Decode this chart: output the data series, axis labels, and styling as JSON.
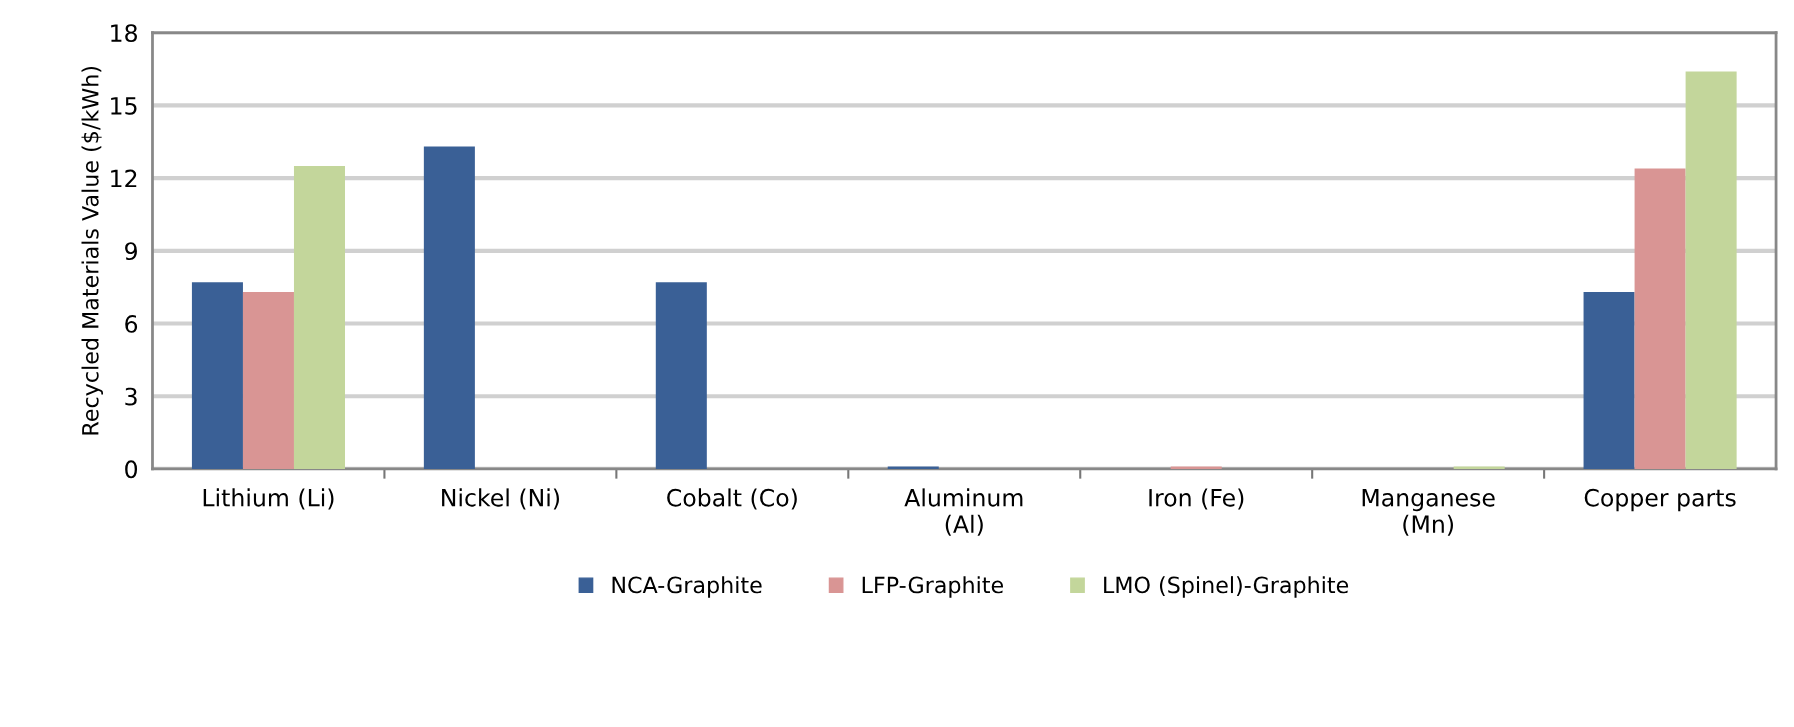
{
  "chart_data": {
    "type": "bar",
    "ylabel": "Recycled Materials Value ($/kWh)",
    "categories": [
      "Lithium (Li)",
      "Nickel (Ni)",
      "Cobalt (Co)",
      "Aluminum\n(Al)",
      "Iron (Fe)",
      "Manganese\n(Mn)",
      "Copper parts"
    ],
    "series": [
      {
        "name": "NCA-Graphite",
        "color": "#3a6096",
        "values": [
          7.7,
          13.3,
          7.7,
          0.1,
          0,
          0,
          7.3
        ]
      },
      {
        "name": "LFP-Graphite",
        "color": "#d99594",
        "values": [
          7.3,
          0,
          0,
          0,
          0.1,
          0,
          12.4
        ]
      },
      {
        "name": "LMO (Spinel)-Graphite",
        "color": "#c3d69b",
        "values": [
          12.5,
          0,
          0,
          0,
          0,
          0.1,
          16.4
        ]
      }
    ],
    "ylim": [
      0,
      18
    ],
    "yticks": [
      0,
      3,
      6,
      9,
      12,
      15,
      18
    ],
    "grid": "y",
    "legend": "bottom"
  }
}
